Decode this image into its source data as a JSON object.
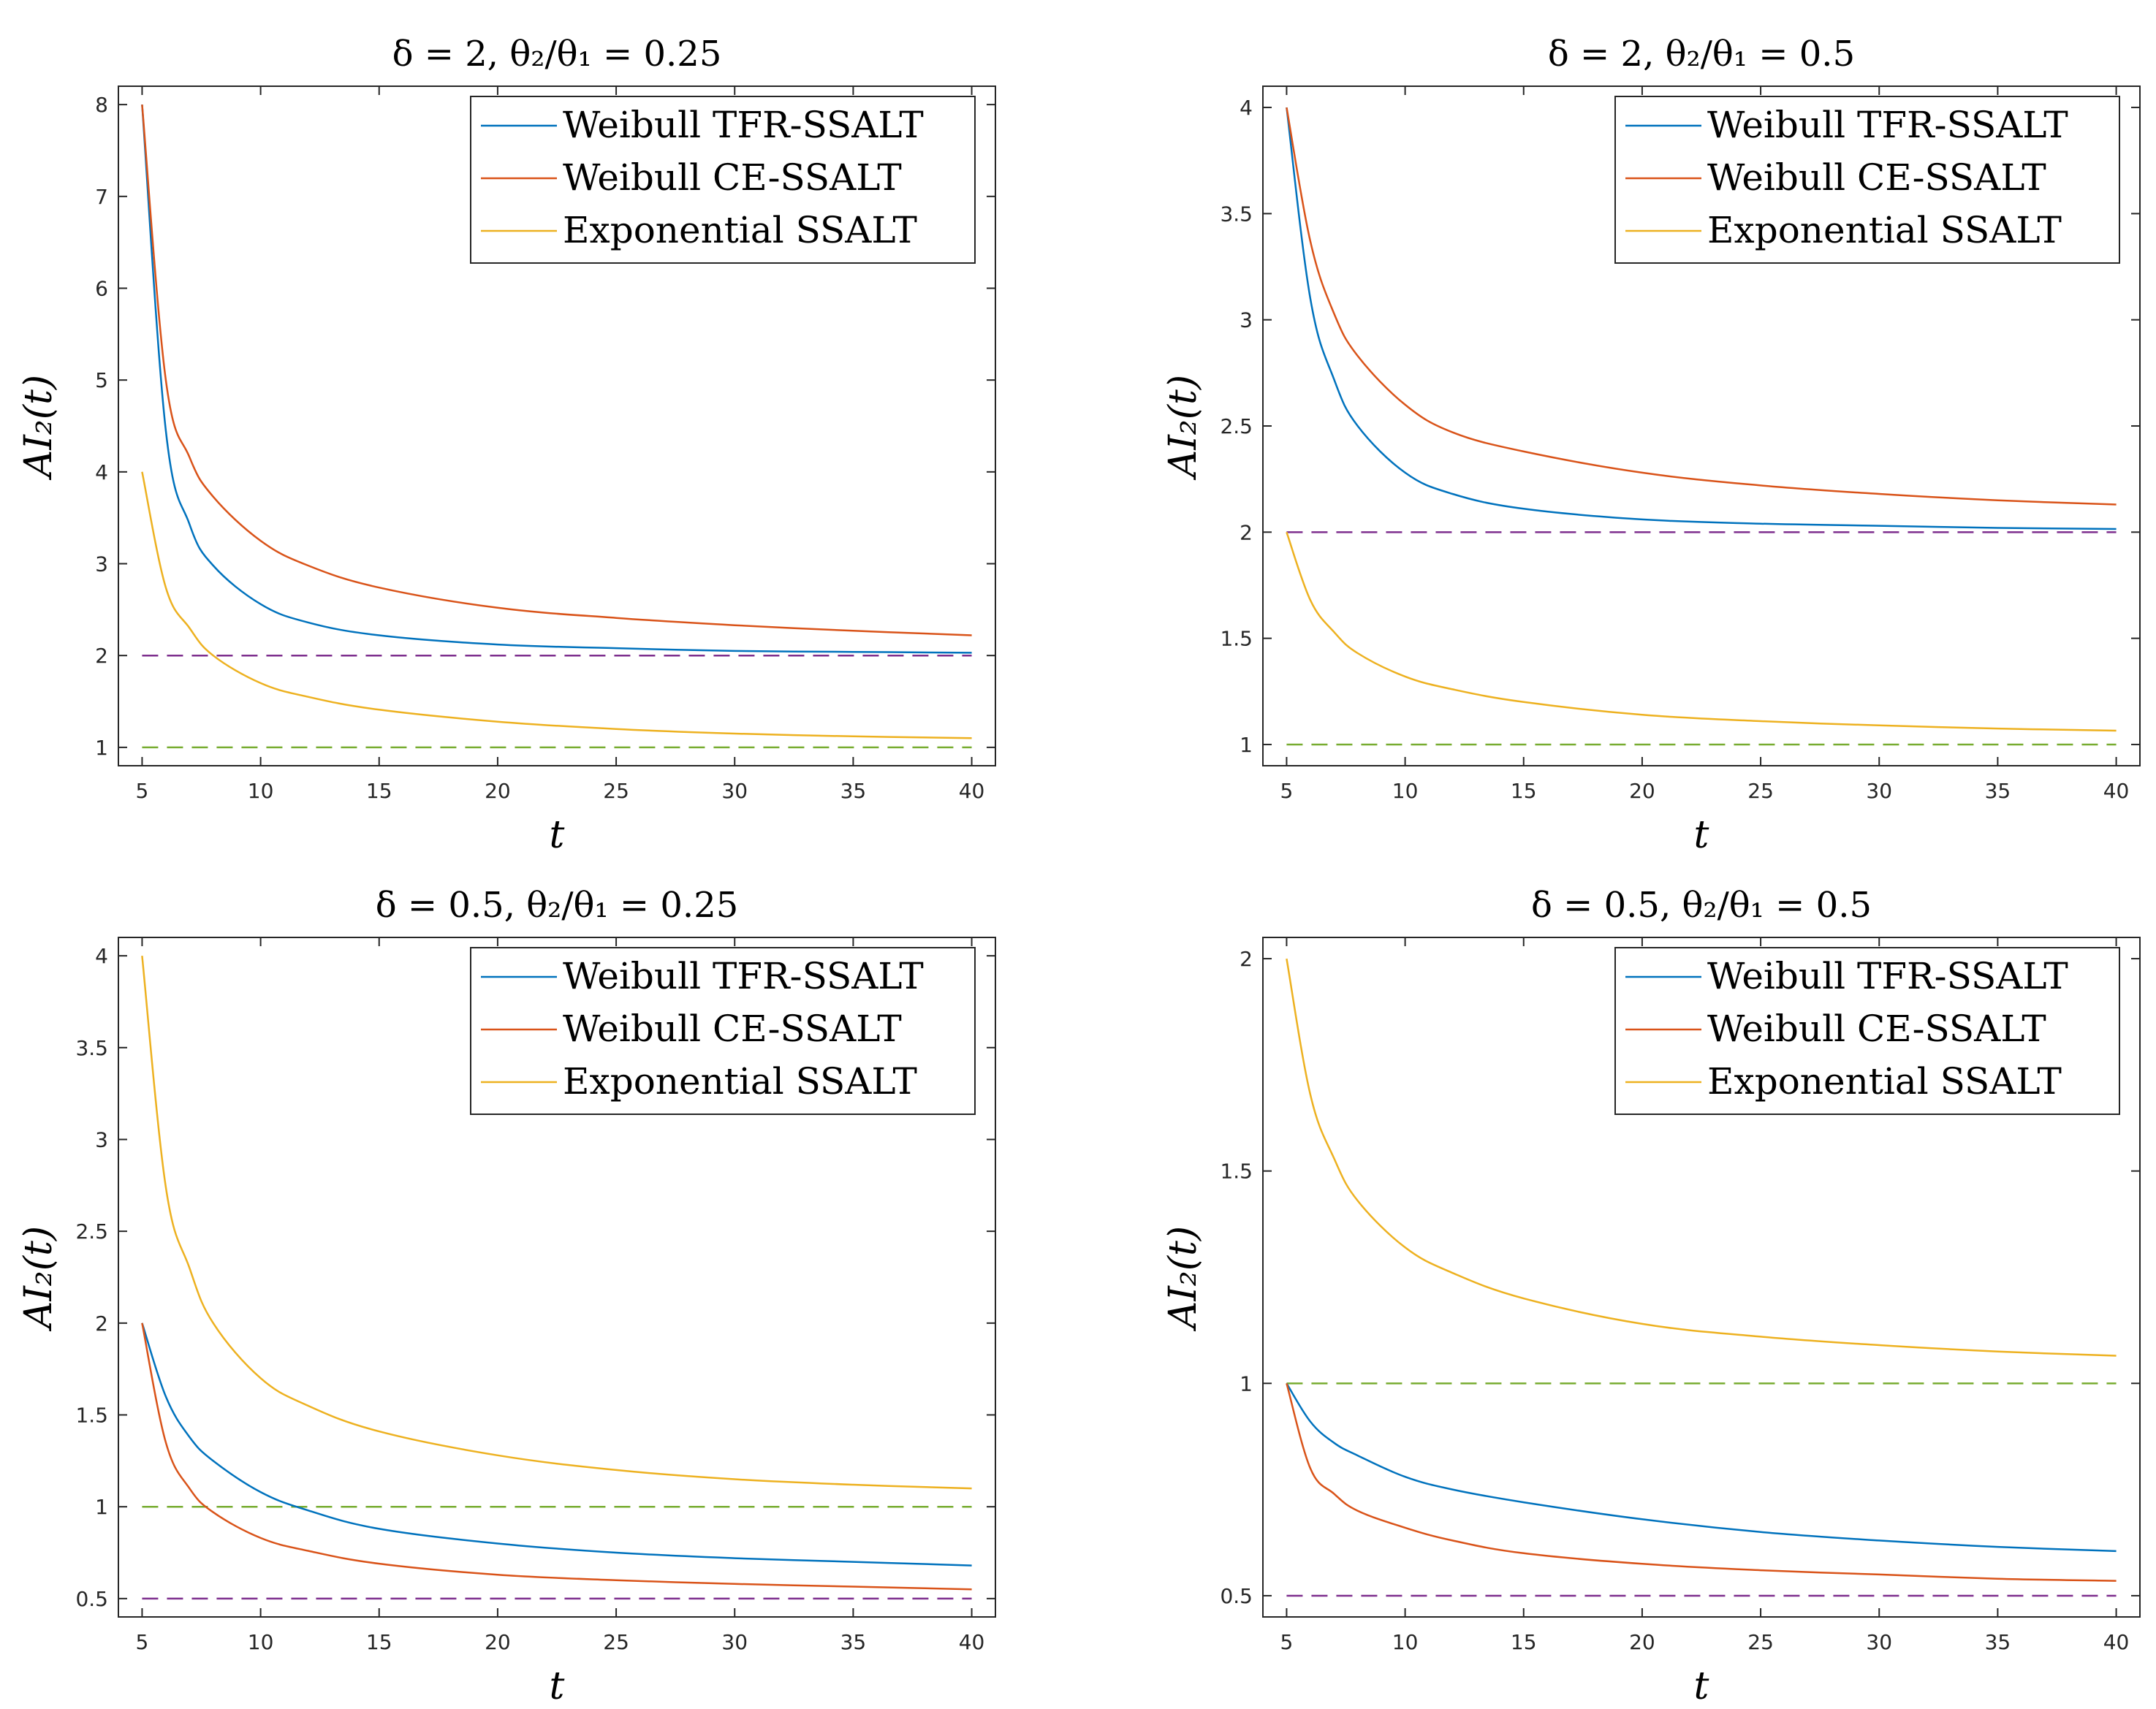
{
  "figure": {
    "series_colors": {
      "tfr": "#0072BD",
      "ce": "#D95319",
      "exp": "#EDB120",
      "ref_purple": "#7E2F8E",
      "ref_green": "#77AC30"
    }
  },
  "chart_data": [
    {
      "type": "line",
      "title": "δ = 2,    θ₂/θ₁ = 0.25",
      "xlabel": "t",
      "ylabel": "AI₂(t)",
      "xlim": [
        4,
        41
      ],
      "ylim": [
        0.8,
        8.2
      ],
      "xticks": [
        5,
        10,
        15,
        20,
        25,
        30,
        35,
        40
      ],
      "yticks": [
        1,
        2,
        3,
        4,
        5,
        6,
        7,
        8
      ],
      "ytick_labels": [
        "1",
        "2",
        "3",
        "4",
        "5",
        "6",
        "7",
        "8"
      ],
      "legend_position": "top-right",
      "x": [
        5,
        6,
        7,
        8,
        10,
        12,
        15,
        20,
        25,
        30,
        35,
        40
      ],
      "series": [
        {
          "name": "Weibull TFR-SSALT",
          "color_key": "tfr",
          "values": [
            8.0,
            4.45,
            3.43,
            2.98,
            2.56,
            2.36,
            2.22,
            2.12,
            2.08,
            2.05,
            2.04,
            2.03
          ]
        },
        {
          "name": "Weibull CE-SSALT",
          "color_key": "ce",
          "values": [
            8.0,
            5.0,
            4.16,
            3.73,
            3.25,
            2.98,
            2.74,
            2.52,
            2.41,
            2.33,
            2.27,
            2.22
          ]
        },
        {
          "name": "Exponential SSALT",
          "color_key": "exp",
          "values": [
            4.0,
            2.74,
            2.3,
            2.0,
            1.7,
            1.55,
            1.41,
            1.28,
            1.2,
            1.15,
            1.12,
            1.1
          ]
        }
      ],
      "ref_lines": [
        {
          "y": 2,
          "color_key": "ref_purple"
        },
        {
          "y": 1,
          "color_key": "ref_green"
        }
      ]
    },
    {
      "type": "line",
      "title": "δ = 2,    θ₂/θ₁ = 0.5",
      "xlabel": "t",
      "ylabel": "AI₂(t)",
      "xlim": [
        4,
        41
      ],
      "ylim": [
        0.9,
        4.1
      ],
      "xticks": [
        5,
        10,
        15,
        20,
        25,
        30,
        35,
        40
      ],
      "yticks": [
        1,
        1.5,
        2,
        2.5,
        3,
        3.5,
        4
      ],
      "ytick_labels": [
        "1",
        "1.5",
        "2",
        "2.5",
        "3",
        "3.5",
        "4"
      ],
      "legend_position": "top-right",
      "x": [
        5,
        6,
        7,
        8,
        10,
        12,
        15,
        20,
        25,
        30,
        35,
        40
      ],
      "series": [
        {
          "name": "Weibull TFR-SSALT",
          "color_key": "tfr",
          "values": [
            4.0,
            3.1,
            2.72,
            2.5,
            2.28,
            2.18,
            2.11,
            2.06,
            2.04,
            2.03,
            2.02,
            2.015
          ]
        },
        {
          "name": "Weibull CE-SSALT",
          "color_key": "ce",
          "values": [
            4.0,
            3.37,
            3.03,
            2.83,
            2.6,
            2.47,
            2.38,
            2.28,
            2.22,
            2.18,
            2.15,
            2.13
          ]
        },
        {
          "name": "Exponential SSALT",
          "color_key": "exp",
          "values": [
            2.0,
            1.68,
            1.53,
            1.43,
            1.32,
            1.26,
            1.2,
            1.14,
            1.11,
            1.09,
            1.075,
            1.065
          ]
        }
      ],
      "ref_lines": [
        {
          "y": 2,
          "color_key": "ref_purple"
        },
        {
          "y": 1,
          "color_key": "ref_green"
        }
      ]
    },
    {
      "type": "line",
      "title": "δ = 0.5,    θ₂/θ₁ = 0.25",
      "xlabel": "t",
      "ylabel": "AI₂(t)",
      "xlim": [
        4,
        41
      ],
      "ylim": [
        0.4,
        4.1
      ],
      "xticks": [
        5,
        10,
        15,
        20,
        25,
        30,
        35,
        40
      ],
      "yticks": [
        0.5,
        1,
        1.5,
        2,
        2.5,
        3,
        3.5,
        4
      ],
      "ytick_labels": [
        "0.5",
        "1",
        "1.5",
        "2",
        "2.5",
        "3",
        "3.5",
        "4"
      ],
      "legend_position": "top-right",
      "x": [
        5,
        6,
        7,
        8,
        10,
        12,
        15,
        20,
        25,
        30,
        35,
        40
      ],
      "series": [
        {
          "name": "Weibull TFR-SSALT",
          "color_key": "tfr",
          "values": [
            2.0,
            1.6,
            1.38,
            1.25,
            1.08,
            0.98,
            0.88,
            0.8,
            0.75,
            0.72,
            0.7,
            0.68
          ]
        },
        {
          "name": "Weibull CE-SSALT",
          "color_key": "ce",
          "values": [
            2.0,
            1.35,
            1.1,
            0.97,
            0.83,
            0.76,
            0.69,
            0.63,
            0.6,
            0.58,
            0.565,
            0.55
          ]
        },
        {
          "name": "Exponential SSALT",
          "color_key": "exp",
          "values": [
            4.0,
            2.74,
            2.3,
            2.0,
            1.7,
            1.55,
            1.41,
            1.28,
            1.2,
            1.15,
            1.12,
            1.1
          ]
        }
      ],
      "ref_lines": [
        {
          "y": 1,
          "color_key": "ref_green"
        },
        {
          "y": 0.5,
          "color_key": "ref_purple"
        }
      ]
    },
    {
      "type": "line",
      "title": "δ = 0.5,    θ₂/θ₁ = 0.5",
      "xlabel": "t",
      "ylabel": "AI₂(t)",
      "xlim": [
        4,
        41
      ],
      "ylim": [
        0.45,
        2.05
      ],
      "xticks": [
        5,
        10,
        15,
        20,
        25,
        30,
        35,
        40
      ],
      "yticks": [
        0.5,
        1,
        1.5,
        2
      ],
      "ytick_labels": [
        "0.5",
        "1",
        "1.5",
        "2"
      ],
      "legend_position": "top-right",
      "x": [
        5,
        6,
        7,
        8,
        10,
        12,
        15,
        20,
        25,
        30,
        35,
        40
      ],
      "series": [
        {
          "name": "Weibull TFR-SSALT",
          "color_key": "tfr",
          "values": [
            1.0,
            0.91,
            0.86,
            0.83,
            0.78,
            0.75,
            0.72,
            0.68,
            0.65,
            0.63,
            0.615,
            0.605
          ]
        },
        {
          "name": "Weibull CE-SSALT",
          "color_key": "ce",
          "values": [
            1.0,
            0.8,
            0.74,
            0.7,
            0.66,
            0.63,
            0.6,
            0.575,
            0.56,
            0.55,
            0.54,
            0.535
          ]
        },
        {
          "name": "Exponential SSALT",
          "color_key": "exp",
          "values": [
            2.0,
            1.68,
            1.53,
            1.43,
            1.32,
            1.26,
            1.2,
            1.14,
            1.11,
            1.09,
            1.075,
            1.065
          ]
        }
      ],
      "ref_lines": [
        {
          "y": 1,
          "color_key": "ref_green"
        },
        {
          "y": 0.5,
          "color_key": "ref_purple"
        }
      ]
    }
  ]
}
